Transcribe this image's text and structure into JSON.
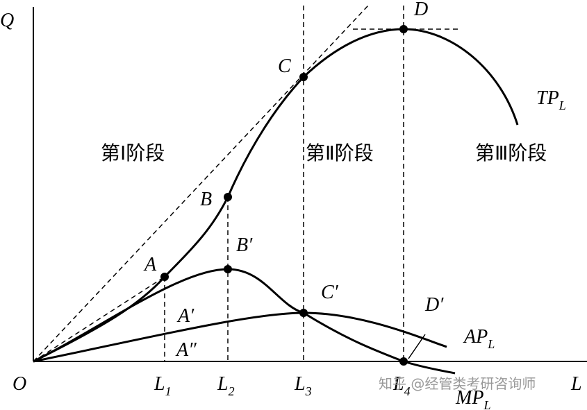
{
  "axis_labels": {
    "y": "Q",
    "origin": "O",
    "x": "L"
  },
  "x_ticks": [
    {
      "main": "L",
      "sub": "1"
    },
    {
      "main": "L",
      "sub": "2"
    },
    {
      "main": "L",
      "sub": "3"
    },
    {
      "main": "L",
      "sub": "4"
    }
  ],
  "points": {
    "A": "A",
    "B": "B",
    "C": "C",
    "D": "D",
    "A1": "A′",
    "B1": "B′",
    "C1": "C′",
    "D1": "D′",
    "A2": "A″"
  },
  "curves": {
    "tp": {
      "main": "TP",
      "sub": "L"
    },
    "ap": {
      "main": "AP",
      "sub": "L"
    },
    "mp": {
      "main": "MP",
      "sub": "L"
    }
  },
  "stages": [
    "第Ⅰ阶段",
    "第Ⅱ阶段",
    "第Ⅲ阶段"
  ],
  "watermark": "知乎 @经管类考研咨询师"
}
